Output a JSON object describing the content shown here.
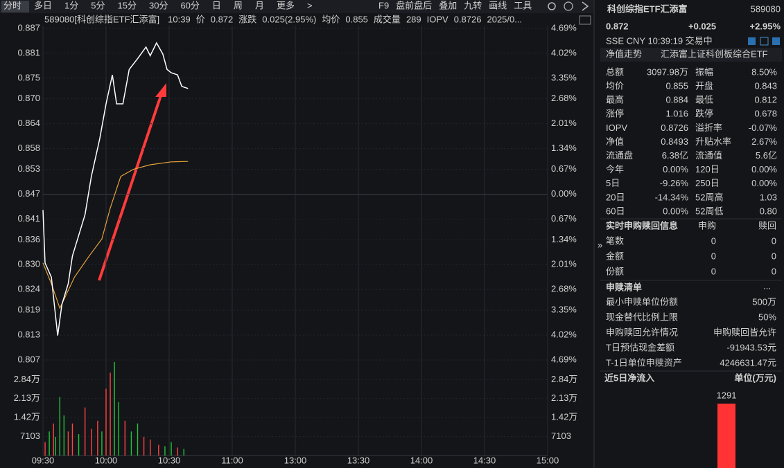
{
  "toolbar": {
    "tabs": [
      "分时",
      "多日",
      "1分",
      "5分",
      "15分",
      "30分",
      "60分",
      "日",
      "周",
      "月",
      "更多",
      ">"
    ],
    "tools": [
      "F9",
      "盘前盘后",
      "叠加",
      "九转",
      "画线",
      "工具"
    ]
  },
  "info_bar": [
    {
      "text": "589080[科创综指ETF汇添富]",
      "color": "#d8d8d8"
    },
    {
      "text": "10:39",
      "color": "#4fc8e8"
    },
    {
      "text": "价",
      "color": "#d8d8d8"
    },
    {
      "text": "0.872",
      "color": "#ff4444"
    },
    {
      "text": "涨跌",
      "color": "#d8d8d8"
    },
    {
      "text": "0.025(2.95%)",
      "color": "#ff4444"
    },
    {
      "text": "均价",
      "color": "#d8d8d8"
    },
    {
      "text": "0.855",
      "color": "#ff4444"
    },
    {
      "text": "成交量",
      "color": "#d8d8d8"
    },
    {
      "text": "289",
      "color": "#d8d8d8"
    },
    {
      "text": "IOPV",
      "color": "#ff4444"
    },
    {
      "text": "0.8726",
      "color": "#ff4444"
    },
    {
      "text": "2025/0...",
      "color": "#d8d8d8"
    }
  ],
  "chart": {
    "ylim": [
      0.807,
      0.887
    ],
    "yticks": [
      0.887,
      0.881,
      0.875,
      {
        "value": 0.87,
        "label": "0.870"
      },
      0.864,
      0.858,
      0.853,
      0.847,
      0.841,
      0.836,
      {
        "value": 0.83,
        "label": "0.830"
      },
      0.824,
      0.819,
      0.813,
      0.807
    ],
    "pct_labels": [
      "4.69%",
      "4.02%",
      "3.35%",
      "2.68%",
      "2.01%",
      "1.34%",
      "0.67%",
      "0.00%",
      "0.67%",
      "1.34%",
      "2.01%",
      "2.68%",
      "3.35%",
      "4.02%",
      "4.69%"
    ],
    "xlim": [
      0,
      240
    ],
    "xticks": [
      {
        "value": 0,
        "label": "09:30"
      },
      {
        "value": 30,
        "label": "10:00"
      },
      {
        "value": 60,
        "label": "10:30"
      },
      {
        "value": 90,
        "label": "11:00"
      },
      {
        "value": 120,
        "label": "13:00"
      },
      {
        "value": 150,
        "label": "13:30"
      },
      {
        "value": 180,
        "label": "14:00"
      },
      {
        "value": 210,
        "label": "14:30"
      },
      {
        "value": 240,
        "label": "15:00"
      }
    ],
    "up_color": "#ff4444",
    "down_color": "#22c43a",
    "flat_color": "#cccccc",
    "price": {
      "color": "#ffffff",
      "t": [
        0,
        1,
        4,
        7,
        9,
        12,
        14,
        17,
        20,
        23,
        27,
        30,
        33,
        35,
        38,
        41,
        45,
        49,
        51,
        54,
        57,
        59,
        61,
        64,
        66,
        69
      ],
      "values": [
        0.8432,
        0.8304,
        0.827,
        0.8129,
        0.8204,
        0.8254,
        0.8321,
        0.8371,
        0.8421,
        0.8513,
        0.8604,
        0.8688,
        0.8758,
        0.8688,
        0.8688,
        0.8771,
        0.8797,
        0.8825,
        0.8804,
        0.8835,
        0.8808,
        0.8771,
        0.8763,
        0.8758,
        0.873,
        0.8725
      ]
    },
    "avg": {
      "color": "#e6a23c",
      "t": [
        0,
        4,
        8,
        15,
        22,
        28,
        32,
        37,
        43,
        51,
        61,
        69
      ],
      "values": [
        0.8304,
        0.8254,
        0.8195,
        0.827,
        0.8321,
        0.8362,
        0.8437,
        0.8513,
        0.853,
        0.8541,
        0.8548,
        0.8549
      ]
    },
    "volume": {
      "vlim": [
        0,
        35500
      ],
      "vticks": [
        {
          "value": 28400,
          "label": "2.84万"
        },
        {
          "value": 21300,
          "label": "2.13万"
        },
        {
          "value": 14200,
          "label": "1.42万"
        },
        7103
      ],
      "t": [
        1,
        3,
        5,
        6,
        8,
        10,
        12,
        14,
        17,
        20,
        23,
        26,
        28,
        30,
        32,
        34,
        36,
        39,
        42,
        45,
        48,
        51,
        55,
        58,
        61,
        64,
        67
      ],
      "values": [
        5000,
        9000,
        12000,
        7000,
        22000,
        15000,
        9000,
        12000,
        8000,
        18000,
        10000,
        13000,
        9000,
        25000,
        31000,
        35000,
        20000,
        13000,
        9000,
        12000,
        7000,
        6000,
        4000,
        3500,
        5000,
        3000,
        2500
      ],
      "colors": [
        "#ff4444",
        "#22c43a",
        "#ff4444",
        "#22c43a",
        "#22c43a",
        "#22c43a",
        "#ff4444",
        "#ff4444",
        "#22c43a",
        "#ff4444",
        "#ff4444",
        "#ff4444",
        "#22c43a",
        "#ff4444",
        "#ff4444",
        "#22c43a",
        "#22c43a",
        "#ff4444",
        "#22c43a",
        "#22c43a",
        "#ff4444",
        "#ff4444",
        "#ff4444",
        "#22c43a",
        "#22c43a",
        "#ff4444",
        "#22c43a"
      ]
    }
  },
  "quote": {
    "name": "科创综指ETF汇添富",
    "code": "589080",
    "price": "0.872",
    "change": "+0.025",
    "change_pct": "+2.95%",
    "status": "SSE  CNY  10:39:19  交易中",
    "nav_tab": "净值走势",
    "fund_name": "汇添富上证科创板综合ETF"
  },
  "stats": [
    [
      {
        "label": "总额",
        "value": "3097.98万"
      },
      {
        "label": "振幅",
        "value": "8.50%"
      }
    ],
    [
      {
        "label": "均价",
        "value": "0.855",
        "color": "#ff4444"
      },
      {
        "label": "开盘",
        "value": "0.843",
        "color": "#22c43a"
      }
    ],
    [
      {
        "label": "最高",
        "value": "0.884",
        "color": "#ff4444"
      },
      {
        "label": "最低",
        "value": "0.812",
        "color": "#22c43a"
      }
    ],
    [
      {
        "label": "涨停",
        "value": "1.016",
        "color": "#ff4444"
      },
      {
        "label": "跌停",
        "value": "0.678",
        "color": "#22c43a"
      }
    ],
    [
      {
        "label": "IOPV",
        "value": "0.8726"
      },
      {
        "label": "溢折率",
        "value": "-0.07%",
        "color": "#22c43a"
      }
    ],
    [
      {
        "label": "净值",
        "value": "0.8493",
        "color": "#ff4444"
      },
      {
        "label": "升贴水率",
        "value": "2.67%",
        "color": "#ff4444"
      }
    ],
    [
      {
        "label": "流通盘",
        "value": "6.38亿"
      },
      {
        "label": "流通值",
        "value": "5.6亿"
      }
    ],
    [
      {
        "label": "今年",
        "value": "0.00%"
      },
      {
        "label": "120日",
        "value": "0.00%"
      }
    ],
    [
      {
        "label": "5日",
        "value": "-9.26%",
        "color": "#22c43a"
      },
      {
        "label": "250日",
        "value": "0.00%"
      }
    ],
    [
      {
        "label": "20日",
        "value": "-14.34%",
        "color": "#22c43a"
      },
      {
        "label": "52周高",
        "value": "1.03"
      }
    ],
    [
      {
        "label": "60日",
        "value": "0.00%"
      },
      {
        "label": "52周低",
        "value": "0.80"
      }
    ]
  ],
  "realtime": {
    "title": "实时申购赎回信息",
    "columns": [
      "申购",
      "赎回"
    ],
    "rows": [
      [
        "笔数",
        "0",
        "0"
      ],
      [
        "金额",
        "0",
        "0"
      ],
      [
        "份额",
        "0",
        "0"
      ]
    ]
  },
  "list": {
    "title": "申赎清单",
    "more": "...",
    "rows": [
      [
        "最小申赎单位份额",
        "500万"
      ],
      [
        "现金替代比例上限",
        "50%"
      ],
      [
        "申购赎回允许情况",
        "申购赎回皆允许"
      ],
      [
        "T日预估现金差额",
        "-91943.53元"
      ],
      [
        "T-1日单位申赎资产",
        "4246631.47元"
      ]
    ]
  },
  "inflow": {
    "title": "近5日净流入",
    "unit": "单位(万元)",
    "values": [
      1291
    ],
    "color": "#ff3333"
  },
  "collapse_glyph": "»"
}
